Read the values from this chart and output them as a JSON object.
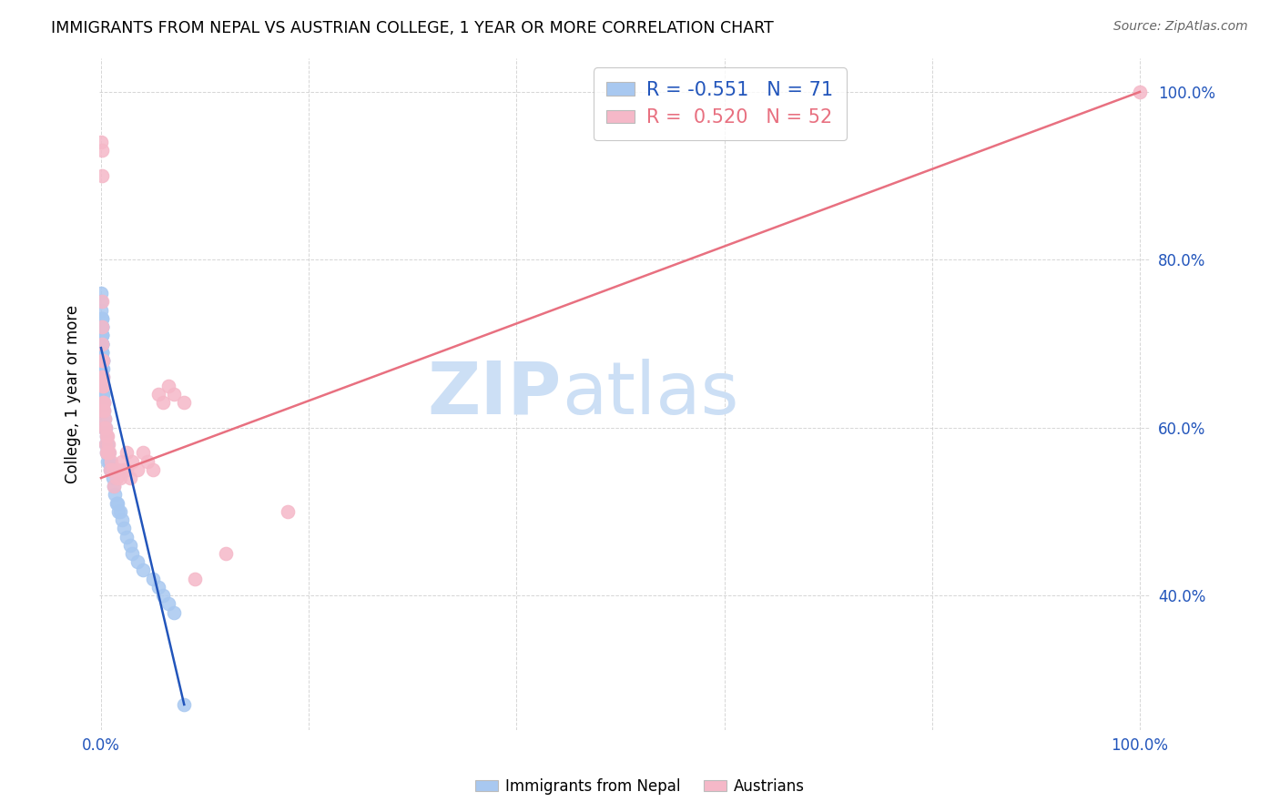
{
  "title": "IMMIGRANTS FROM NEPAL VS AUSTRIAN COLLEGE, 1 YEAR OR MORE CORRELATION CHART",
  "source": "Source: ZipAtlas.com",
  "ylabel": "College, 1 year or more",
  "nepal_color": "#a8c8f0",
  "austria_color": "#f5b8c8",
  "nepal_line_color": "#2255bb",
  "austria_line_color": "#e87080",
  "legend_nepal_R": "-0.551",
  "legend_nepal_N": "71",
  "legend_austria_R": "0.520",
  "legend_austria_N": "52",
  "nepal_x": [
    0.0002,
    0.0003,
    0.0004,
    0.0004,
    0.0005,
    0.0005,
    0.0005,
    0.0006,
    0.0006,
    0.0007,
    0.0007,
    0.0007,
    0.0008,
    0.0008,
    0.0008,
    0.0009,
    0.0009,
    0.001,
    0.001,
    0.001,
    0.0011,
    0.0011,
    0.0012,
    0.0012,
    0.0013,
    0.0013,
    0.0014,
    0.0014,
    0.0015,
    0.0015,
    0.0016,
    0.0017,
    0.0018,
    0.0019,
    0.002,
    0.002,
    0.0022,
    0.0025,
    0.003,
    0.003,
    0.0035,
    0.004,
    0.004,
    0.005,
    0.005,
    0.006,
    0.006,
    0.007,
    0.008,
    0.009,
    0.01,
    0.011,
    0.012,
    0.013,
    0.015,
    0.016,
    0.017,
    0.018,
    0.02,
    0.022,
    0.025,
    0.028,
    0.03,
    0.035,
    0.04,
    0.05,
    0.055,
    0.06,
    0.065,
    0.07,
    0.08
  ],
  "nepal_y": [
    0.74,
    0.76,
    0.72,
    0.75,
    0.73,
    0.71,
    0.7,
    0.72,
    0.69,
    0.73,
    0.71,
    0.68,
    0.72,
    0.7,
    0.67,
    0.71,
    0.68,
    0.72,
    0.7,
    0.67,
    0.69,
    0.66,
    0.7,
    0.67,
    0.69,
    0.66,
    0.68,
    0.65,
    0.68,
    0.65,
    0.67,
    0.66,
    0.65,
    0.64,
    0.65,
    0.62,
    0.64,
    0.63,
    0.62,
    0.6,
    0.61,
    0.6,
    0.58,
    0.59,
    0.57,
    0.58,
    0.56,
    0.57,
    0.56,
    0.55,
    0.55,
    0.54,
    0.53,
    0.52,
    0.51,
    0.51,
    0.5,
    0.5,
    0.49,
    0.48,
    0.47,
    0.46,
    0.45,
    0.44,
    0.43,
    0.42,
    0.41,
    0.4,
    0.39,
    0.38,
    0.27
  ],
  "austria_x": [
    0.0003,
    0.0005,
    0.0006,
    0.0008,
    0.001,
    0.001,
    0.0012,
    0.0013,
    0.0015,
    0.0016,
    0.0018,
    0.002,
    0.002,
    0.0022,
    0.0025,
    0.003,
    0.003,
    0.0035,
    0.004,
    0.004,
    0.005,
    0.005,
    0.006,
    0.006,
    0.007,
    0.008,
    0.009,
    0.01,
    0.011,
    0.012,
    0.015,
    0.016,
    0.018,
    0.02,
    0.022,
    0.025,
    0.025,
    0.028,
    0.03,
    0.035,
    0.04,
    0.045,
    0.05,
    0.055,
    0.06,
    0.065,
    0.07,
    0.08,
    0.09,
    0.12,
    0.18,
    1.0
  ],
  "austria_y": [
    0.94,
    0.93,
    0.9,
    0.75,
    0.72,
    0.7,
    0.68,
    0.66,
    0.65,
    0.68,
    0.66,
    0.65,
    0.63,
    0.62,
    0.63,
    0.62,
    0.6,
    0.61,
    0.6,
    0.58,
    0.59,
    0.57,
    0.59,
    0.57,
    0.58,
    0.57,
    0.55,
    0.56,
    0.55,
    0.53,
    0.54,
    0.55,
    0.54,
    0.56,
    0.55,
    0.57,
    0.55,
    0.54,
    0.56,
    0.55,
    0.57,
    0.56,
    0.55,
    0.64,
    0.63,
    0.65,
    0.64,
    0.63,
    0.42,
    0.45,
    0.5,
    1.0
  ],
  "nepal_line_x": [
    0.0,
    0.08
  ],
  "nepal_line_y": [
    0.695,
    0.27
  ],
  "austria_line_x": [
    0.0,
    1.0
  ],
  "austria_line_y": [
    0.54,
    1.0
  ],
  "xlim": [
    -0.002,
    1.01
  ],
  "ylim": [
    0.24,
    1.04
  ],
  "xticks": [
    0.0,
    0.2,
    0.4,
    0.6,
    0.8,
    1.0
  ],
  "xtick_labels": [
    "0.0%",
    "",
    "",
    "",
    "",
    "100.0%"
  ],
  "yticks_right": [
    0.4,
    0.6,
    0.8,
    1.0
  ],
  "ytick_right_labels": [
    "40.0%",
    "60.0%",
    "80.0%",
    "100.0%"
  ],
  "watermark_color": "#ccdff5"
}
